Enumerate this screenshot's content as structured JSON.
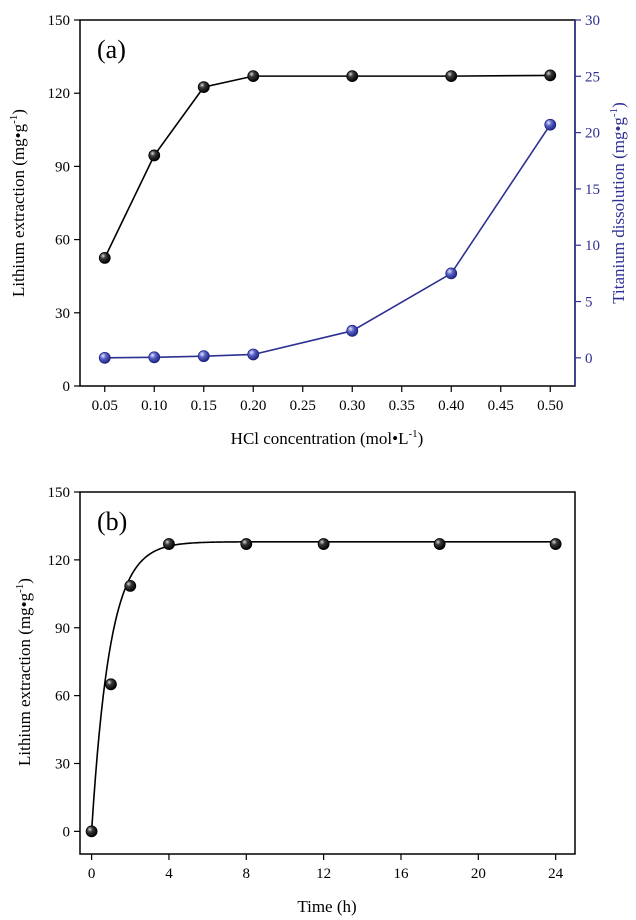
{
  "chart_data": [
    {
      "type": "scatter",
      "panel_label": "(a)",
      "xlabel": "HCl concentration (mol•L",
      "xlabel_sup": "-1",
      "xlabel_end": ")",
      "x_ticks": [
        "0.05",
        "0.10",
        "0.15",
        "0.20",
        "0.25",
        "0.30",
        "0.35",
        "0.40",
        "0.45",
        "0.50"
      ],
      "xlim": [
        0.025,
        0.525
      ],
      "ylabel_left": "Lithium extraction  (mg•g",
      "ylabel_left_sup": "-1",
      "ylabel_left_end": ")",
      "ylim_left": [
        0,
        150
      ],
      "y_ticks_left": [
        "0",
        "30",
        "60",
        "90",
        "120",
        "150"
      ],
      "ylabel_right": "Titanium dissolution  (mg•g",
      "ylabel_right_sup": "-1",
      "ylabel_right_end": ")",
      "ylim_right": [
        -2.5,
        30
      ],
      "y_ticks_right": [
        "0",
        "5",
        "10",
        "15",
        "20",
        "25",
        "30"
      ],
      "series": [
        {
          "axis": "left",
          "color": "#000000",
          "x": [
            0.05,
            0.1,
            0.15,
            0.2,
            0.3,
            0.4,
            0.5
          ],
          "values": [
            52.5,
            94.5,
            122.5,
            127,
            127,
            127,
            127.3
          ]
        },
        {
          "axis": "right",
          "color": "#2e3192",
          "x": [
            0.05,
            0.1,
            0.15,
            0.2,
            0.3,
            0.4,
            0.5
          ],
          "values": [
            0.0,
            0.05,
            0.15,
            0.3,
            2.4,
            7.5,
            20.7
          ]
        }
      ]
    },
    {
      "type": "scatter",
      "panel_label": "(b)",
      "xlabel": "Time (h)",
      "x_ticks": [
        "0",
        "4",
        "8",
        "12",
        "16",
        "20",
        "24"
      ],
      "xlim": [
        -0.6,
        25
      ],
      "ylabel": "Lithium extraction (mg•g",
      "ylabel_sup": "-1",
      "ylabel_end": ")",
      "ylim": [
        -10,
        150
      ],
      "y_ticks": [
        "0",
        "30",
        "60",
        "90",
        "120",
        "150"
      ],
      "series": [
        {
          "color": "#000000",
          "x": [
            0,
            1,
            2,
            4,
            8,
            12,
            18,
            24
          ],
          "values": [
            0,
            65,
            108.5,
            127,
            127,
            127,
            127,
            127
          ]
        }
      ],
      "fit": {
        "type": "exponential",
        "plateau": 128,
        "rate": 1.05
      }
    }
  ]
}
